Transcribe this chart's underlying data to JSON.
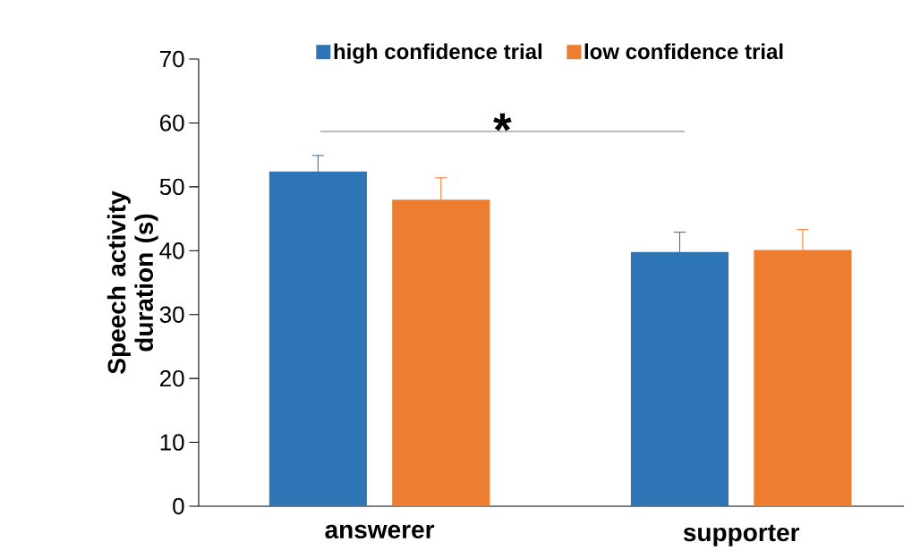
{
  "chart_data": {
    "type": "bar",
    "ylabel": "Speech activity duration (s)",
    "categories": [
      "answerer",
      "supporter"
    ],
    "series": [
      {
        "name": "high confidence trial",
        "color": "#2e75b6",
        "values": [
          52.4,
          39.8
        ],
        "errors": [
          2.5,
          3.1
        ]
      },
      {
        "name": "low confidence trial",
        "color": "#ed7d31",
        "values": [
          48.0,
          40.1
        ],
        "errors": [
          3.4,
          3.2
        ]
      }
    ],
    "ylim": [
      0,
      70
    ],
    "yticks": [
      0,
      10,
      20,
      30,
      40,
      50,
      60,
      70
    ],
    "annotations": [
      "*"
    ],
    "legend": "top",
    "grid": false
  }
}
